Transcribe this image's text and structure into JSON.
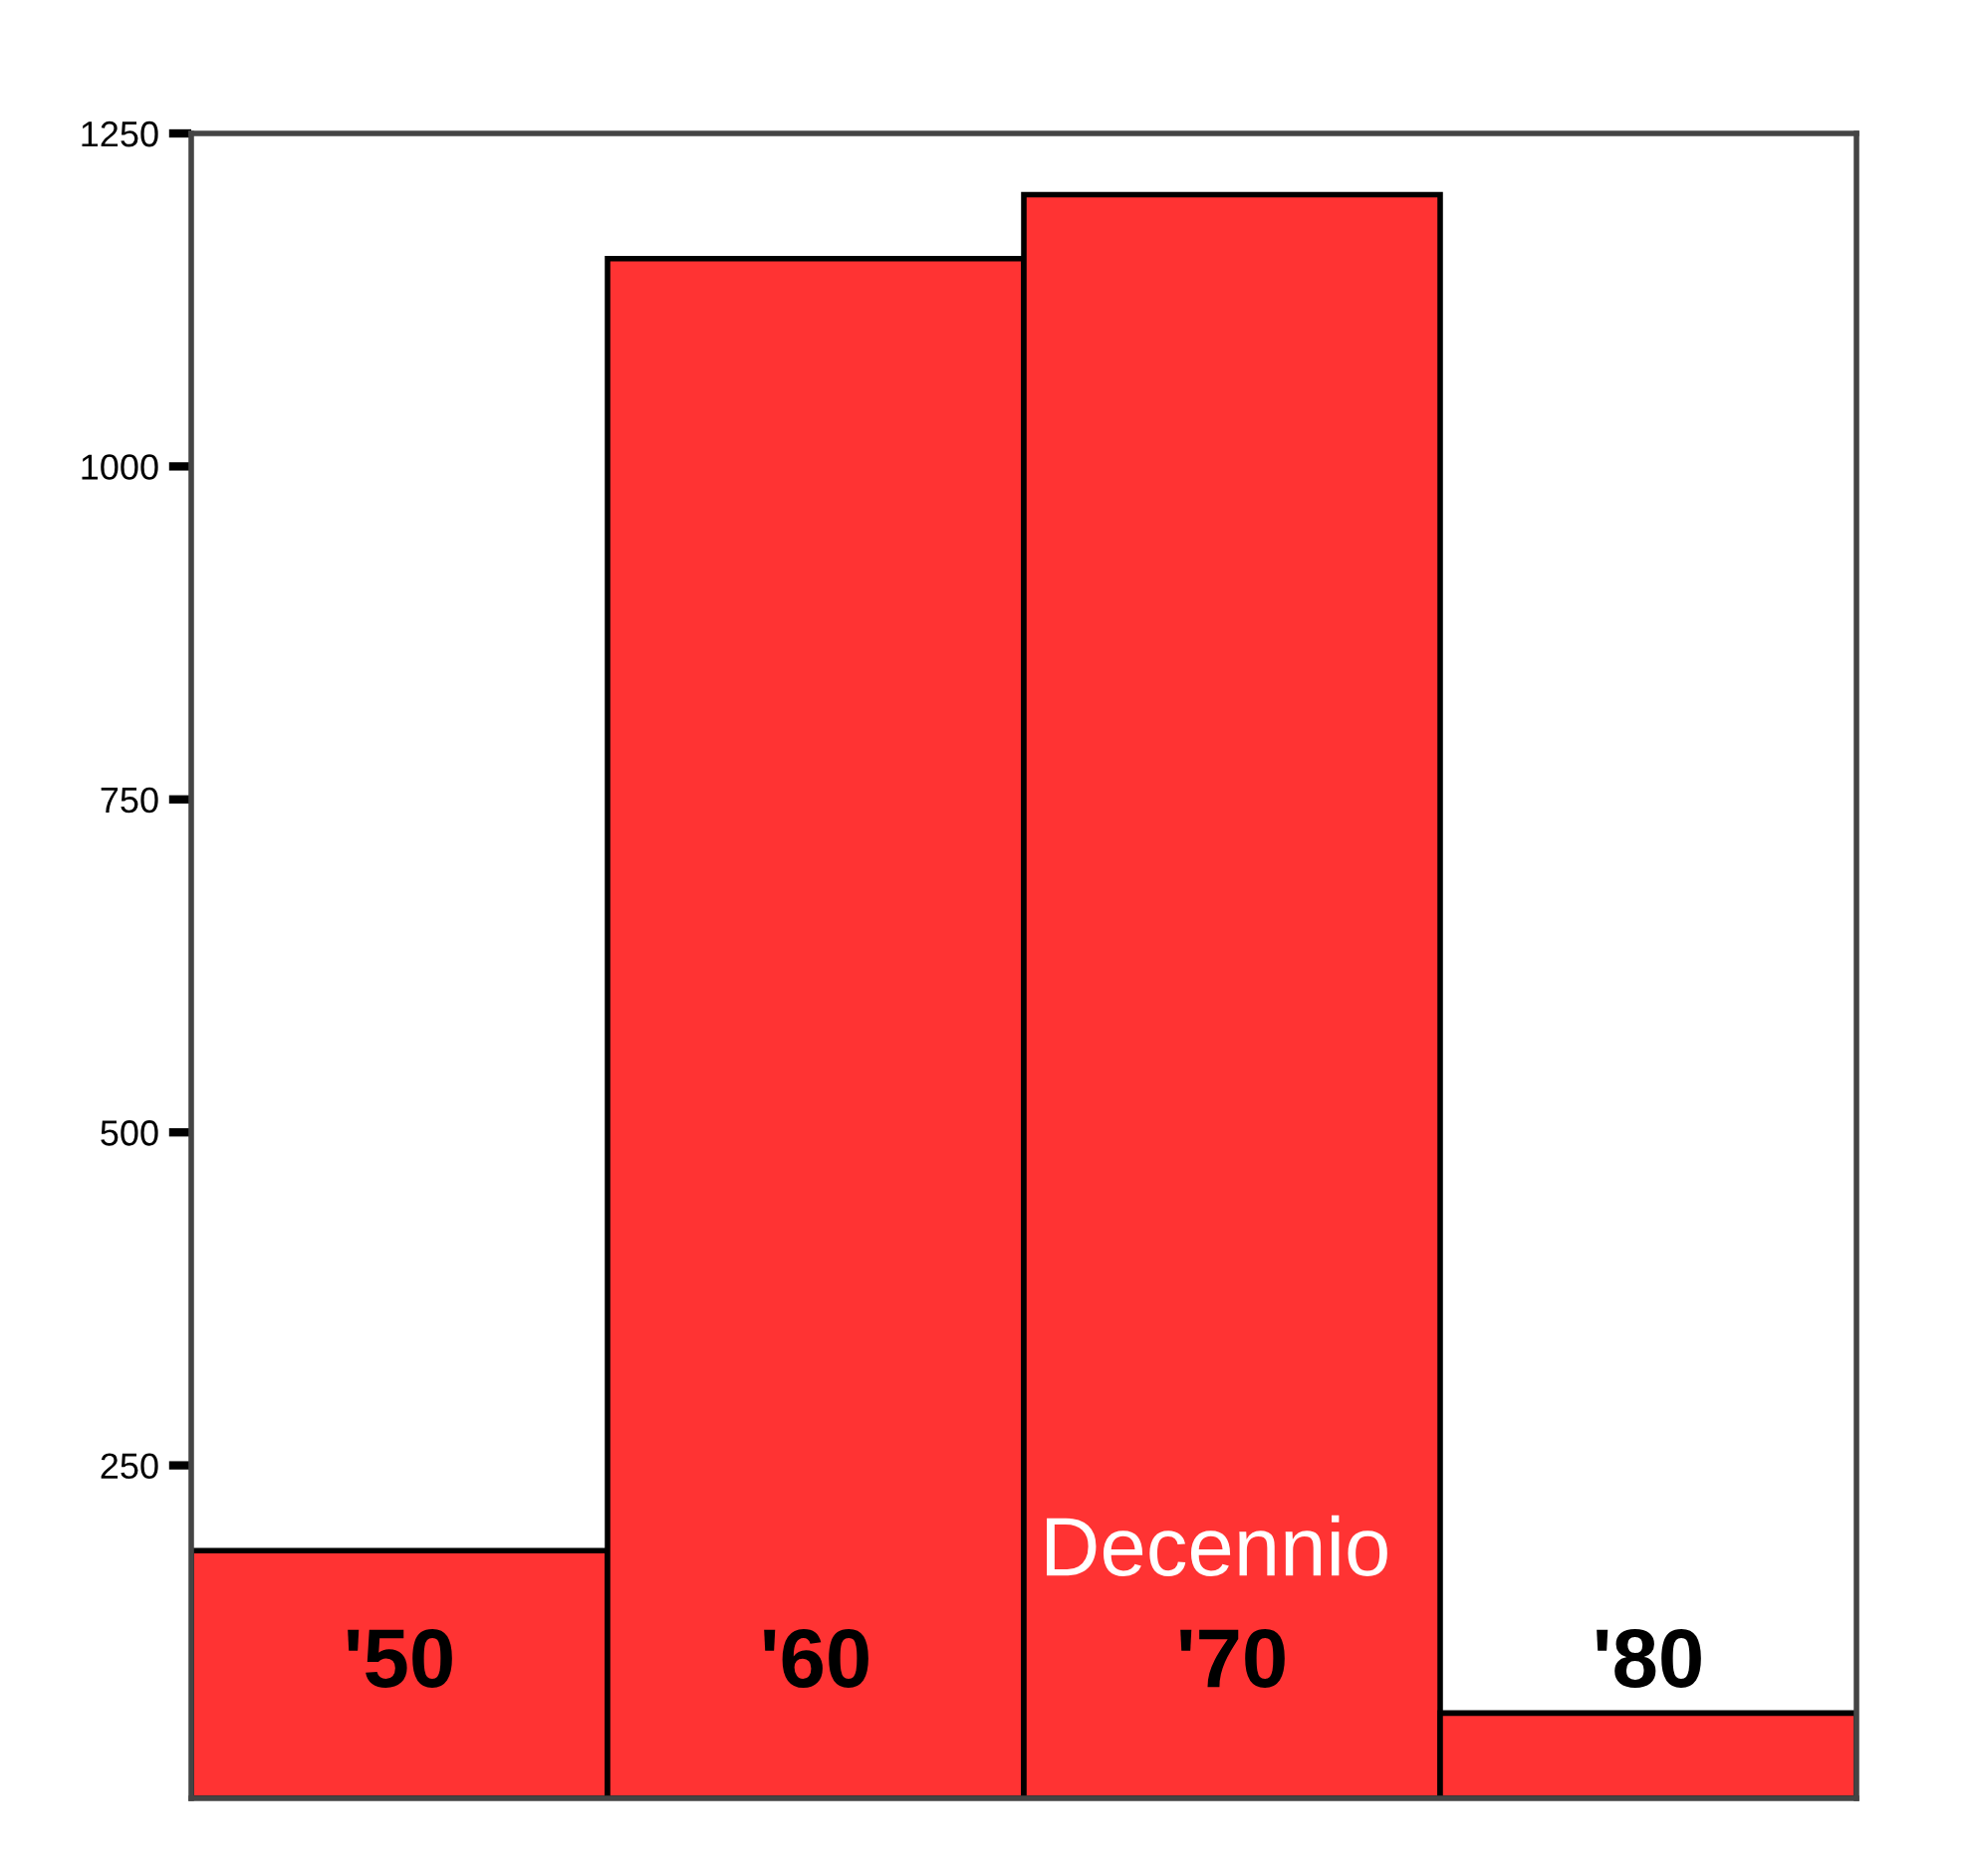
{
  "chart_data": {
    "type": "bar",
    "categories": [
      "'50",
      "'60",
      "'70",
      "'80"
    ],
    "values": [
      186,
      1156,
      1204,
      64
    ],
    "color": "#ff3333",
    "xlabel": "Decennio",
    "ylim": [
      0,
      1250
    ],
    "yticks": [
      250,
      500,
      750,
      1000,
      1250
    ],
    "grid": false
  }
}
